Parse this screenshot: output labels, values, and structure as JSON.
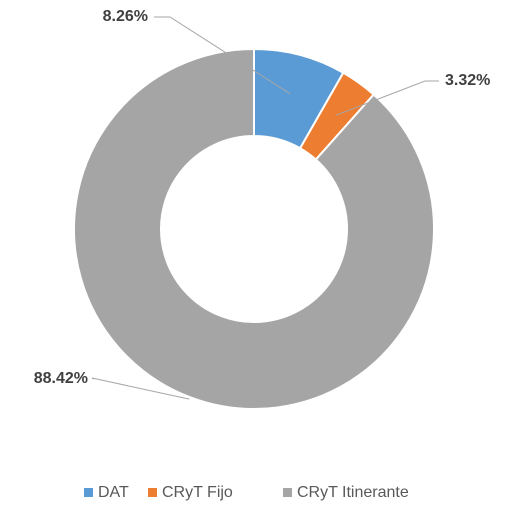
{
  "chart_data": {
    "type": "donut",
    "categories": [
      "DAT",
      "CRyT Fijo",
      "CRyT Itinerante"
    ],
    "values": [
      8.26,
      3.32,
      88.42
    ],
    "value_labels": [
      "8.26%",
      "3.32%",
      "88.42%"
    ],
    "colors": [
      "#5b9bd5",
      "#ed7d31",
      "#a5a5a5"
    ],
    "legend": "bottom"
  }
}
